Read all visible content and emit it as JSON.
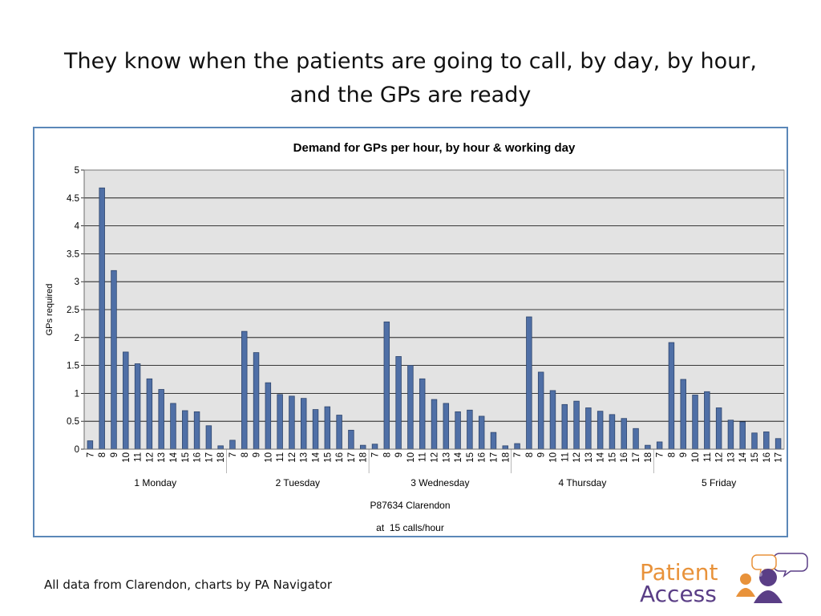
{
  "slide": {
    "title_line1": "They know when the patients are going to call, by day, by hour,",
    "title_line2": "and the GPs are ready",
    "footer": "All data from Clarendon, charts by PA Navigator",
    "brand_line1": "Patient",
    "brand_line2": "Access",
    "logo_icon": "people-speech-bubbles-icon"
  },
  "chart_data": {
    "type": "bar",
    "title": "Demand for GPs per hour, by hour & working day",
    "ylabel": "GPs required",
    "xlabel_line1": "P87634 Clarendon",
    "xlabel_line2": "at  15 calls/hour",
    "ylim": [
      0,
      5
    ],
    "yticks": [
      "0",
      "0.5",
      "1",
      "1.5",
      "2",
      "2.5",
      "3",
      "3.5",
      "4",
      "4.5",
      "5"
    ],
    "grid": true,
    "legend": "none",
    "colors": {
      "bar": "#4f6fa6",
      "bar_stroke": "#2f466d",
      "plot_bg": "#e3e3e3",
      "gridline": "#000000"
    },
    "groups": [
      {
        "name": "1 Monday",
        "hours": [
          "7",
          "8",
          "9",
          "10",
          "11",
          "12",
          "13",
          "14",
          "15",
          "16",
          "17",
          "18"
        ],
        "values": [
          0.15,
          4.68,
          3.2,
          1.74,
          1.53,
          1.26,
          1.07,
          0.82,
          0.69,
          0.67,
          0.42,
          0.06
        ]
      },
      {
        "name": "2 Tuesday",
        "hours": [
          "7",
          "8",
          "9",
          "10",
          "11",
          "12",
          "13",
          "14",
          "15",
          "16",
          "17",
          "18"
        ],
        "values": [
          0.16,
          2.11,
          1.73,
          1.19,
          0.98,
          0.95,
          0.91,
          0.71,
          0.76,
          0.61,
          0.34,
          0.07
        ]
      },
      {
        "name": "3 Wednesday",
        "hours": [
          "7",
          "8",
          "9",
          "10",
          "11",
          "12",
          "13",
          "14",
          "15",
          "16",
          "17",
          "18"
        ],
        "values": [
          0.09,
          2.28,
          1.66,
          1.5,
          1.26,
          0.89,
          0.82,
          0.67,
          0.7,
          0.59,
          0.3,
          0.06
        ]
      },
      {
        "name": "4 Thursday",
        "hours": [
          "7",
          "8",
          "9",
          "10",
          "11",
          "12",
          "13",
          "14",
          "15",
          "16",
          "17",
          "18"
        ],
        "values": [
          0.1,
          2.37,
          1.38,
          1.05,
          0.8,
          0.86,
          0.74,
          0.68,
          0.62,
          0.55,
          0.37,
          0.07
        ]
      },
      {
        "name": "5 Friday",
        "hours": [
          "7",
          "8",
          "9",
          "10",
          "11",
          "12",
          "13",
          "14",
          "15",
          "16",
          "17"
        ],
        "values": [
          0.13,
          1.91,
          1.25,
          0.97,
          1.03,
          0.74,
          0.52,
          0.49,
          0.29,
          0.31,
          0.19
        ]
      }
    ]
  }
}
